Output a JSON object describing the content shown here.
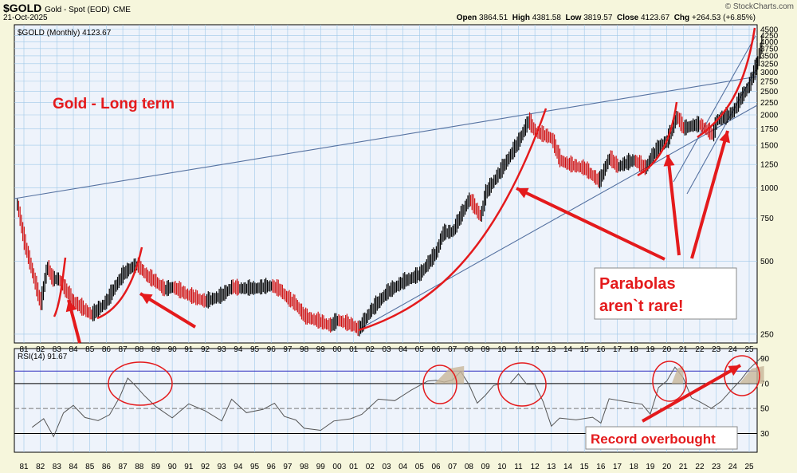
{
  "header": {
    "symbol": "$GOLD",
    "name": "Gold - Spot (EOD)",
    "exchange": "CME",
    "date": "21-Oct-2025",
    "brand": "© StockCharts.com",
    "open_label": "Open",
    "open": "3864.51",
    "high_label": "High",
    "high": "4381.58",
    "low_label": "Low",
    "low": "3819.57",
    "close_label": "Close",
    "close": "4123.67",
    "chg_label": "Chg",
    "chg": "+264.53 (+6.85%)"
  },
  "colors": {
    "background": "#f6f6dc",
    "plot": "#eef3fb",
    "grid": "#9fc8e8",
    "price_up": "#000000",
    "price_down": "#d01010",
    "annotation": "#e41a1c",
    "trendline": "#5571a0",
    "rsi_line": "#555555"
  },
  "chart_data": [
    {
      "type": "line",
      "legend": "$GOLD (Monthly) 4123.67",
      "scale": "log",
      "ylim": [
        230,
        4700
      ],
      "y_ticks": [
        250,
        500,
        750,
        1000,
        1250,
        1500,
        1750,
        2000,
        2250,
        2500,
        2750,
        3000,
        3250,
        3500,
        3750,
        4000,
        4250,
        4500
      ],
      "x_ticks": [
        "81",
        "82",
        "83",
        "84",
        "85",
        "86",
        "87",
        "88",
        "89",
        "90",
        "91",
        "92",
        "93",
        "94",
        "95",
        "96",
        "97",
        "98",
        "99",
        "00",
        "01",
        "02",
        "03",
        "04",
        "05",
        "06",
        "07",
        "08",
        "09",
        "10",
        "11",
        "12",
        "13",
        "14",
        "15",
        "16",
        "17",
        "18",
        "19",
        "20",
        "21",
        "22",
        "23",
        "24",
        "25"
      ],
      "x": [
        1980.6,
        1981.0,
        1981.5,
        1982.0,
        1982.4,
        1982.7,
        1983.1,
        1983.5,
        1984.0,
        1984.5,
        1985.1,
        1985.6,
        1986.0,
        1986.5,
        1987.0,
        1987.5,
        1987.9,
        1988.5,
        1989.0,
        1989.5,
        1990.0,
        1991.0,
        1992.0,
        1993.0,
        1993.6,
        1994.0,
        1995.0,
        1996.0,
        1996.5,
        1997.0,
        1997.5,
        1998.0,
        1999.0,
        1999.6,
        2000.0,
        2001.0,
        2001.3,
        2002.0,
        2003.0,
        2004.0,
        2005.0,
        2006.0,
        2006.4,
        2007.0,
        2008.0,
        2008.7,
        2009.0,
        2010.0,
        2011.0,
        2011.6,
        2012.0,
        2012.5,
        2013.0,
        2013.5,
        2014.0,
        2015.0,
        2015.9,
        2016.5,
        2017.0,
        2018.0,
        2018.7,
        2019.0,
        2019.6,
        2020.0,
        2020.6,
        2021.0,
        2021.5,
        2022.0,
        2022.8,
        2023.0,
        2023.5,
        2024.0,
        2024.5,
        2025.0,
        2025.5,
        2025.8
      ],
      "close": [
        850,
        600,
        450,
        330,
        480,
        420,
        420,
        380,
        340,
        320,
        300,
        320,
        340,
        390,
        440,
        470,
        480,
        430,
        410,
        380,
        390,
        360,
        340,
        360,
        390,
        385,
        385,
        395,
        380,
        350,
        330,
        295,
        280,
        270,
        285,
        270,
        260,
        310,
        370,
        410,
        440,
        540,
        650,
        660,
        900,
        760,
        950,
        1200,
        1550,
        1890,
        1700,
        1650,
        1600,
        1300,
        1250,
        1200,
        1060,
        1330,
        1220,
        1300,
        1200,
        1320,
        1500,
        1550,
        1970,
        1750,
        1800,
        1820,
        1650,
        1900,
        1950,
        2050,
        2350,
        2650,
        3300,
        4124
      ],
      "annotations": [
        "Gold  -  Long term",
        "Parabolas",
        "aren`t rare!"
      ]
    },
    {
      "type": "line",
      "legend": "RSI(14) 91.67",
      "ylim": [
        15,
        98
      ],
      "y_ticks": [
        30,
        50,
        70,
        90
      ],
      "ref_lines": [
        80,
        70,
        50,
        30
      ],
      "x_ticks": [
        "81",
        "82",
        "83",
        "84",
        "85",
        "86",
        "87",
        "88",
        "89",
        "90",
        "91",
        "92",
        "93",
        "94",
        "95",
        "96",
        "97",
        "98",
        "99",
        "00",
        "01",
        "02",
        "03",
        "04",
        "05",
        "06",
        "07",
        "08",
        "09",
        "10",
        "11",
        "12",
        "13",
        "14",
        "15",
        "16",
        "17",
        "18",
        "19",
        "20",
        "21",
        "22",
        "23",
        "24",
        "25"
      ],
      "x": [
        1981.5,
        1982.2,
        1982.8,
        1983.4,
        1984.0,
        1984.7,
        1985.5,
        1986.2,
        1986.8,
        1987.3,
        1987.8,
        1988.3,
        1989.0,
        1990.0,
        1991.0,
        1992.0,
        1993.0,
        1993.6,
        1994.5,
        1995.5,
        1996.2,
        1996.8,
        1997.5,
        1998.0,
        1999.0,
        1999.8,
        2000.8,
        2001.5,
        2002.5,
        2003.5,
        2004.5,
        2005.5,
        2006.0,
        2006.5,
        2007.0,
        2007.5,
        2008.0,
        2008.5,
        2009.0,
        2009.5,
        2010.0,
        2010.5,
        2011.0,
        2011.5,
        2012.0,
        2012.5,
        2013.0,
        2013.5,
        2014.5,
        2015.5,
        2016.0,
        2016.5,
        2017.5,
        2018.5,
        2019.0,
        2019.5,
        2020.0,
        2020.5,
        2021.0,
        2021.5,
        2022.0,
        2022.7,
        2023.3,
        2024.0,
        2024.5,
        2025.0,
        2025.8
      ],
      "rsi": [
        35,
        40,
        30,
        45,
        52,
        45,
        38,
        46,
        60,
        72,
        70,
        60,
        50,
        45,
        52,
        48,
        42,
        55,
        48,
        50,
        52,
        46,
        40,
        33,
        35,
        38,
        42,
        47,
        55,
        58,
        65,
        70,
        75,
        70,
        72,
        82,
        67,
        55,
        62,
        66,
        72,
        70,
        76,
        72,
        68,
        55,
        38,
        40,
        42,
        44,
        36,
        60,
        55,
        52,
        48,
        65,
        72,
        85,
        72,
        60,
        56,
        48,
        58,
        65,
        72,
        84,
        91.67
      ],
      "annotations": [
        "Record overbought"
      ]
    }
  ]
}
